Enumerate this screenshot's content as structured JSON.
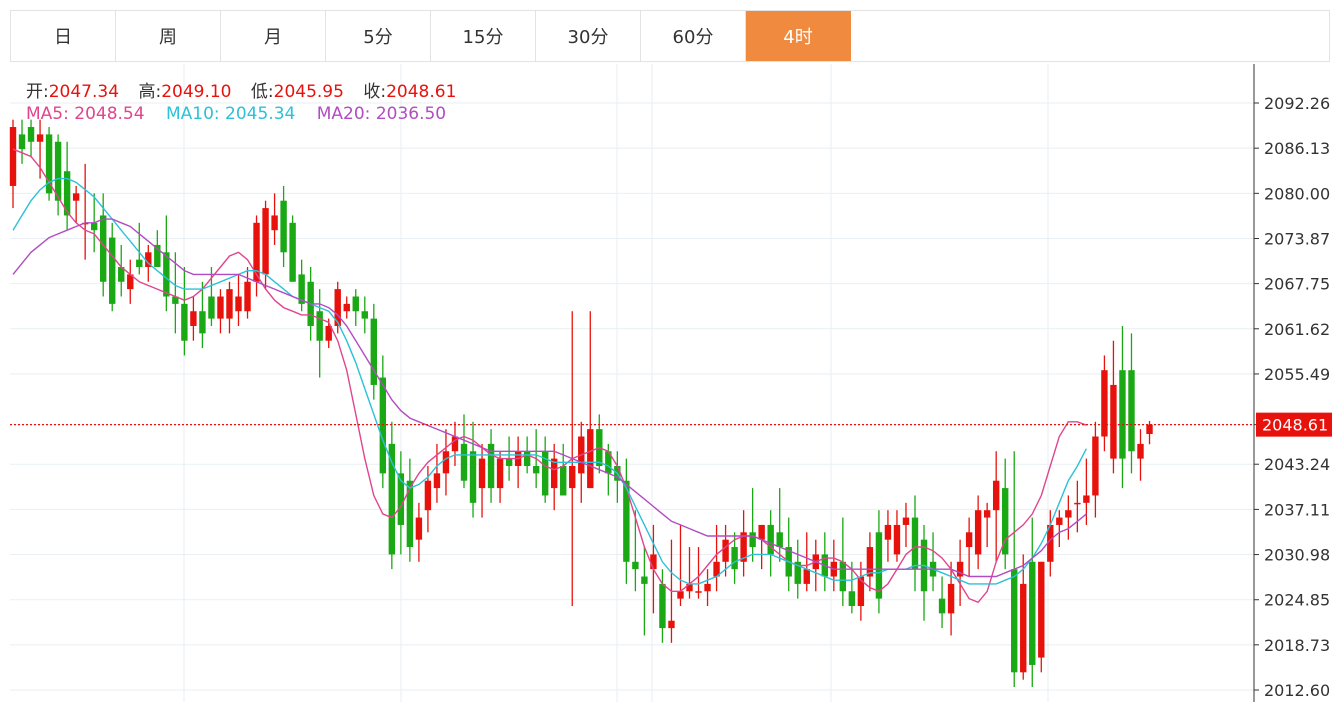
{
  "tabs": [
    {
      "label": "日",
      "active": false
    },
    {
      "label": "周",
      "active": false
    },
    {
      "label": "月",
      "active": false
    },
    {
      "label": "5分",
      "active": false
    },
    {
      "label": "15分",
      "active": false
    },
    {
      "label": "30分",
      "active": false
    },
    {
      "label": "60分",
      "active": false
    },
    {
      "label": "4时",
      "active": true
    }
  ],
  "ohlc": {
    "open_label": "开:",
    "open": "2047.34",
    "high_label": "高:",
    "high": "2049.10",
    "low_label": "低:",
    "low": "2045.95",
    "close_label": "收:",
    "close": "2048.61"
  },
  "ma": {
    "ma5_label": "MA5:",
    "ma5": "2048.54",
    "ma10_label": "MA10:",
    "ma10": "2045.34",
    "ma20_label": "MA20:",
    "ma20": "2036.50"
  },
  "colors": {
    "up": "#e8120c",
    "down": "#1aa814",
    "ma5": "#e0458d",
    "ma10": "#2cc1d8",
    "ma20": "#b24cc2",
    "last_price": "#e8120c",
    "tab_active": "#f08a3e"
  },
  "chart_data": {
    "type": "candlestick",
    "ylim": [
      2011.0,
      2097.0
    ],
    "y_ticks": [
      "2092.26",
      "2086.13",
      "2080.00",
      "2073.87",
      "2067.75",
      "2061.62",
      "2055.49",
      "2048.61",
      "2043.24",
      "2037.11",
      "2030.98",
      "2024.85",
      "2018.73",
      "2012.60"
    ],
    "last_price": 2048.61,
    "last_price_label": "2048.61",
    "ma_series": [
      {
        "name": "MA5",
        "values": [
          2086.0,
          2085.5,
          2085.0,
          2083.5,
          2081.5,
          2079.5,
          2077.5,
          2076.0,
          2075.0,
          2074.5,
          2073.0,
          2071.5,
          2070.0,
          2069.0,
          2068.0,
          2067.5,
          2067.0,
          2066.5,
          2066.0,
          2065.5,
          2066.0,
          2067.0,
          2068.5,
          2070.0,
          2071.5,
          2072.0,
          2071.0,
          2069.0,
          2067.0,
          2065.5,
          2064.5,
          2064.0,
          2063.5,
          2063.5,
          2063.0,
          2062.5,
          2060.0,
          2056.0,
          2050.0,
          2044.0,
          2039.0,
          2036.5,
          2036.0,
          2037.5,
          2040.0,
          2042.0,
          2043.5,
          2044.5,
          2045.5,
          2046.5,
          2047.0,
          2046.5,
          2045.5,
          2044.5,
          2044.0,
          2044.0,
          2044.0,
          2044.5,
          2044.0,
          2043.0,
          2042.5,
          2043.0,
          2044.0,
          2044.5,
          2045.0,
          2045.5,
          2045.0,
          2043.0,
          2040.0,
          2036.0,
          2032.0,
          2029.0,
          2027.0,
          2026.0,
          2026.0,
          2027.0,
          2028.0,
          2029.5,
          2031.0,
          2032.0,
          2033.0,
          2033.5,
          2033.5,
          2033.0,
          2032.0,
          2031.0,
          2030.0,
          2029.5,
          2029.5,
          2030.0,
          2030.5,
          2030.5,
          2030.0,
          2029.0,
          2027.5,
          2026.5,
          2026.0,
          2027.0,
          2029.0,
          2031.0,
          2032.0,
          2032.0,
          2031.5,
          2030.5,
          2029.0,
          2027.0,
          2025.0,
          2024.5,
          2026.0,
          2030.0,
          2033.0,
          2034.0,
          2035.0,
          2036.5,
          2039.0,
          2043.0,
          2047.0,
          2049.0,
          2049.0,
          2048.54
        ]
      },
      {
        "name": "MA10",
        "values": [
          2075.0,
          2077.0,
          2079.0,
          2080.5,
          2081.5,
          2082.0,
          2082.0,
          2081.5,
          2080.5,
          2079.5,
          2078.0,
          2076.5,
          2075.0,
          2073.5,
          2072.0,
          2070.5,
          2069.5,
          2068.5,
          2067.5,
          2067.0,
          2067.0,
          2067.0,
          2067.5,
          2068.0,
          2068.5,
          2069.0,
          2069.5,
          2069.5,
          2069.0,
          2068.0,
          2067.0,
          2066.0,
          2065.5,
          2065.0,
          2064.5,
          2064.0,
          2062.5,
          2060.0,
          2057.0,
          2053.5,
          2050.0,
          2046.5,
          2043.5,
          2041.0,
          2040.0,
          2040.5,
          2041.5,
          2043.0,
          2044.0,
          2044.5,
          2044.5,
          2044.5,
          2044.5,
          2044.5,
          2044.5,
          2044.5,
          2044.5,
          2044.5,
          2044.5,
          2044.0,
          2043.5,
          2043.5,
          2043.5,
          2043.5,
          2043.5,
          2043.5,
          2043.0,
          2042.0,
          2040.0,
          2037.5,
          2035.0,
          2032.5,
          2030.0,
          2028.5,
          2027.5,
          2027.0,
          2027.0,
          2027.5,
          2028.0,
          2029.0,
          2030.0,
          2030.5,
          2031.0,
          2031.0,
          2031.0,
          2030.5,
          2030.0,
          2029.5,
          2029.0,
          2028.5,
          2028.0,
          2027.5,
          2027.5,
          2027.5,
          2028.0,
          2028.5,
          2028.5,
          2029.0,
          2029.0,
          2029.0,
          2029.5,
          2029.5,
          2029.0,
          2028.5,
          2028.0,
          2027.5,
          2027.0,
          2027.0,
          2027.0,
          2027.0,
          2027.5,
          2028.0,
          2029.0,
          2030.5,
          2032.5,
          2035.0,
          2038.0,
          2041.0,
          2043.0,
          2045.34
        ]
      },
      {
        "name": "MA20",
        "values": [
          2069.0,
          2070.5,
          2072.0,
          2073.0,
          2074.0,
          2074.5,
          2075.0,
          2075.5,
          2076.0,
          2076.0,
          2076.5,
          2076.5,
          2076.0,
          2075.5,
          2074.5,
          2073.5,
          2072.5,
          2071.5,
          2070.5,
          2069.5,
          2069.0,
          2069.0,
          2069.0,
          2069.0,
          2069.0,
          2069.0,
          2068.5,
          2068.0,
          2067.5,
          2067.0,
          2066.5,
          2066.0,
          2065.5,
          2065.0,
          2065.0,
          2064.5,
          2063.5,
          2062.0,
          2060.0,
          2058.0,
          2056.0,
          2054.0,
          2052.0,
          2050.5,
          2049.5,
          2049.0,
          2048.5,
          2048.0,
          2047.5,
          2047.0,
          2046.5,
          2046.0,
          2045.5,
          2045.0,
          2045.0,
          2045.0,
          2045.0,
          2045.0,
          2045.0,
          2045.0,
          2045.0,
          2044.5,
          2044.0,
          2043.5,
          2043.0,
          2042.5,
          2042.0,
          2041.5,
          2040.5,
          2039.5,
          2038.5,
          2037.5,
          2036.5,
          2035.5,
          2035.0,
          2034.5,
          2034.0,
          2033.5,
          2033.5,
          2033.5,
          2033.5,
          2033.5,
          2033.5,
          2033.0,
          2032.5,
          2032.0,
          2031.5,
          2031.0,
          2030.5,
          2030.0,
          2029.5,
          2029.0,
          2029.0,
          2029.0,
          2029.0,
          2029.0,
          2029.0,
          2029.0,
          2029.0,
          2029.0,
          2029.0,
          2029.0,
          2029.0,
          2029.0,
          2029.0,
          2028.5,
          2028.0,
          2028.0,
          2028.0,
          2028.0,
          2028.5,
          2029.0,
          2029.5,
          2030.5,
          2031.5,
          2033.0,
          2034.0,
          2034.5,
          2035.5,
          2036.5
        ]
      }
    ],
    "candles": [
      [
        2081,
        2090,
        2078,
        2089
      ],
      [
        2088,
        2090,
        2084,
        2086
      ],
      [
        2089,
        2090,
        2085,
        2087
      ],
      [
        2087,
        2090,
        2082,
        2088
      ],
      [
        2088,
        2089,
        2079,
        2080
      ],
      [
        2087,
        2088,
        2077,
        2079
      ],
      [
        2083,
        2087,
        2075,
        2077
      ],
      [
        2079,
        2081,
        2076,
        2080
      ],
      [
        2076,
        2084,
        2071,
        2076
      ],
      [
        2076,
        2080,
        2072,
        2075
      ],
      [
        2077,
        2080,
        2066,
        2068
      ],
      [
        2074,
        2076,
        2064,
        2065
      ],
      [
        2070,
        2073,
        2066,
        2068
      ],
      [
        2067,
        2071,
        2065,
        2069
      ],
      [
        2071,
        2076,
        2069,
        2070
      ],
      [
        2070,
        2073,
        2068,
        2072
      ],
      [
        2073,
        2075,
        2070,
        2070
      ],
      [
        2072,
        2077,
        2064,
        2066
      ],
      [
        2066,
        2072,
        2061,
        2065
      ],
      [
        2065,
        2070,
        2058,
        2060
      ],
      [
        2062,
        2066,
        2060,
        2064
      ],
      [
        2064,
        2068,
        2059,
        2061
      ],
      [
        2066,
        2070,
        2062,
        2063
      ],
      [
        2063,
        2067,
        2061,
        2066
      ],
      [
        2063,
        2068,
        2061,
        2067
      ],
      [
        2064,
        2069,
        2062,
        2066
      ],
      [
        2064,
        2070,
        2063,
        2068
      ],
      [
        2068,
        2077,
        2066,
        2076
      ],
      [
        2069,
        2079,
        2067,
        2078
      ],
      [
        2075,
        2080,
        2073,
        2077
      ],
      [
        2079,
        2081,
        2070,
        2072
      ],
      [
        2076,
        2077,
        2068,
        2068
      ],
      [
        2069,
        2071,
        2064,
        2065
      ],
      [
        2068,
        2070,
        2060,
        2062
      ],
      [
        2064,
        2067,
        2055,
        2060
      ],
      [
        2060,
        2063,
        2059,
        2062
      ],
      [
        2062,
        2068,
        2061,
        2067
      ],
      [
        2064,
        2066,
        2063,
        2065
      ],
      [
        2066,
        2067,
        2062,
        2064
      ],
      [
        2064,
        2066,
        2061,
        2063
      ],
      [
        2063,
        2065,
        2052,
        2054
      ],
      [
        2055,
        2058,
        2040,
        2042
      ],
      [
        2046,
        2049,
        2029,
        2031
      ],
      [
        2042,
        2045,
        2031,
        2035
      ],
      [
        2041,
        2044,
        2030,
        2032
      ],
      [
        2033,
        2038,
        2030,
        2036
      ],
      [
        2037,
        2043,
        2034,
        2041
      ],
      [
        2040,
        2046,
        2038,
        2042
      ],
      [
        2042,
        2048,
        2039,
        2045
      ],
      [
        2045,
        2049,
        2043,
        2047
      ],
      [
        2046,
        2050,
        2040,
        2041
      ],
      [
        2045,
        2049,
        2036,
        2038
      ],
      [
        2040,
        2046,
        2036,
        2044
      ],
      [
        2046,
        2048,
        2038,
        2040
      ],
      [
        2040,
        2045,
        2038,
        2044
      ],
      [
        2044,
        2047,
        2041,
        2043
      ],
      [
        2043,
        2047,
        2040,
        2045
      ],
      [
        2045,
        2047,
        2042,
        2043
      ],
      [
        2043,
        2048,
        2040,
        2042
      ],
      [
        2045,
        2047,
        2038,
        2039
      ],
      [
        2040,
        2046,
        2037,
        2044
      ],
      [
        2043,
        2046,
        2039,
        2039
      ],
      [
        2040,
        2064,
        2024,
        2043
      ],
      [
        2042,
        2049,
        2038,
        2047
      ],
      [
        2040,
        2064,
        2040,
        2048
      ],
      [
        2048,
        2050,
        2042,
        2043
      ],
      [
        2045,
        2046,
        2039,
        2042
      ],
      [
        2043,
        2045,
        2038,
        2041
      ],
      [
        2041,
        2044,
        2027,
        2030
      ],
      [
        2030,
        2037,
        2026,
        2029
      ],
      [
        2028,
        2032,
        2020,
        2027
      ],
      [
        2029,
        2035,
        2023,
        2031
      ],
      [
        2027,
        2029,
        2019,
        2021
      ],
      [
        2021,
        2033,
        2019,
        2022
      ],
      [
        2025,
        2035,
        2024,
        2026
      ],
      [
        2026,
        2032,
        2025,
        2027
      ],
      [
        2026,
        2032,
        2025,
        2026
      ],
      [
        2026,
        2029,
        2024,
        2027
      ],
      [
        2028,
        2035,
        2026,
        2030
      ],
      [
        2030,
        2035,
        2028,
        2033
      ],
      [
        2032,
        2034,
        2027,
        2029
      ],
      [
        2030,
        2037,
        2028,
        2034
      ],
      [
        2034,
        2040,
        2030,
        2032
      ],
      [
        2033,
        2035,
        2029,
        2035
      ],
      [
        2035,
        2037,
        2028,
        2031
      ],
      [
        2034,
        2040,
        2030,
        2032
      ],
      [
        2032,
        2036,
        2026,
        2028
      ],
      [
        2030,
        2033,
        2025,
        2027
      ],
      [
        2027,
        2034,
        2026,
        2029
      ],
      [
        2029,
        2033,
        2026,
        2031
      ],
      [
        2031,
        2034,
        2026,
        2028
      ],
      [
        2028,
        2033,
        2026,
        2030
      ],
      [
        2030,
        2036,
        2024,
        2026
      ],
      [
        2026,
        2030,
        2023,
        2024
      ],
      [
        2024,
        2030,
        2022,
        2028
      ],
      [
        2028,
        2034,
        2026,
        2032
      ],
      [
        2034,
        2037,
        2023,
        2025
      ],
      [
        2033,
        2037,
        2030,
        2035
      ],
      [
        2031,
        2037,
        2030,
        2035
      ],
      [
        2035,
        2038,
        2032,
        2036
      ],
      [
        2036,
        2039,
        2026,
        2029
      ],
      [
        2033,
        2035,
        2022,
        2026
      ],
      [
        2030,
        2034,
        2026,
        2028
      ],
      [
        2025,
        2028,
        2021,
        2023
      ],
      [
        2023,
        2030,
        2020,
        2027
      ],
      [
        2028,
        2033,
        2024,
        2030
      ],
      [
        2032,
        2036,
        2028,
        2034
      ],
      [
        2031,
        2039,
        2029,
        2037
      ],
      [
        2036,
        2038,
        2032,
        2037
      ],
      [
        2037,
        2045,
        2030,
        2041
      ],
      [
        2040,
        2044,
        2029,
        2031
      ],
      [
        2029,
        2045,
        2013,
        2015
      ],
      [
        2015,
        2031,
        2014,
        2027
      ],
      [
        2030,
        2036,
        2013,
        2016
      ],
      [
        2017,
        2030,
        2015,
        2030
      ],
      [
        2030,
        2037,
        2028,
        2035
      ],
      [
        2035,
        2037,
        2032,
        2036
      ],
      [
        2036,
        2039,
        2033,
        2037
      ],
      [
        2038,
        2041,
        2034,
        2038
      ],
      [
        2038,
        2044,
        2035,
        2039
      ],
      [
        2039,
        2049,
        2036,
        2047
      ],
      [
        2047,
        2058,
        2045,
        2056
      ],
      [
        2044,
        2060,
        2042,
        2054
      ],
      [
        2056,
        2062,
        2040,
        2044
      ],
      [
        2056,
        2061,
        2042,
        2045
      ],
      [
        2044,
        2048,
        2041,
        2046
      ],
      [
        2047.34,
        2049.1,
        2045.95,
        2048.61
      ]
    ]
  }
}
